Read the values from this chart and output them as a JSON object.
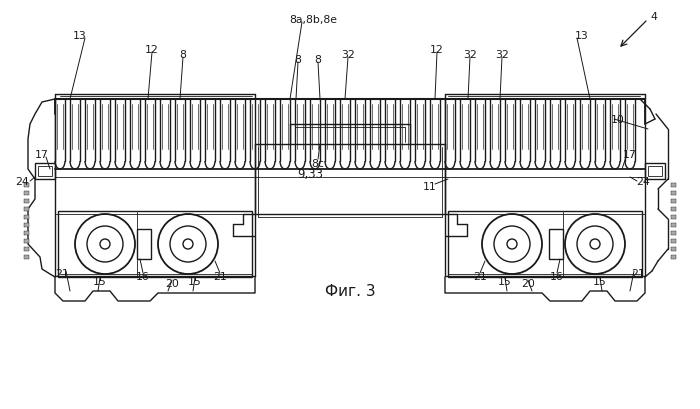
{
  "background_color": "#ffffff",
  "line_color": "#1a1a1a",
  "fig_caption": "Фиг. 3",
  "label_4": "4",
  "label_8a": "8a,8b,8е",
  "lw": 1.0,
  "tlw": 0.6
}
